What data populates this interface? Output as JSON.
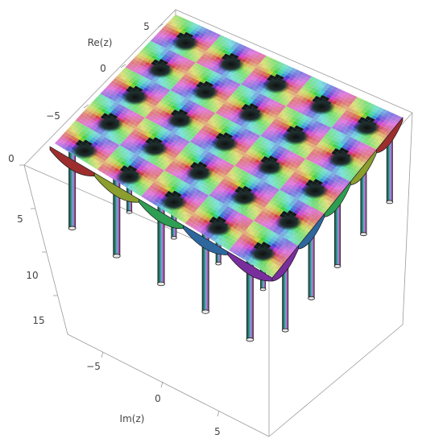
{
  "chart_data": {
    "type": "surface3d",
    "title": "",
    "function": "|z^2 ... | colored by Arg (complex domain coloring with poles)",
    "xlabel": "Re(z)",
    "ylabel": "Im(z)",
    "zlabel": "",
    "re_ticks": [
      "5",
      "0",
      "−5"
    ],
    "im_ticks": [
      "−5",
      "0",
      "5"
    ],
    "vertical_ticks": [
      "0",
      "5",
      "10",
      "15"
    ],
    "re_range": [
      -8,
      8
    ],
    "im_range": [
      -8,
      8
    ],
    "vertical_range": [
      0,
      18
    ],
    "pole_grid": {
      "rows": 5,
      "cols": 5,
      "spacing": 3.14
    },
    "colormap": "hue (argument)",
    "box": true
  }
}
